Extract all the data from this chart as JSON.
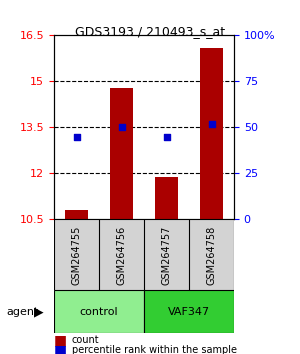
{
  "title": "GDS3193 / 210493_s_at",
  "samples": [
    "GSM264755",
    "GSM264756",
    "GSM264757",
    "GSM264758"
  ],
  "groups": [
    "control",
    "control",
    "VAF347",
    "VAF347"
  ],
  "group_colors": [
    "#90EE90",
    "#90EE90",
    "#32CD32",
    "#32CD32"
  ],
  "bar_values": [
    10.8,
    14.8,
    11.9,
    16.1
  ],
  "dot_values": [
    13.4,
    13.5,
    13.4,
    13.55
  ],
  "dot_percentiles": [
    45,
    50,
    45,
    52
  ],
  "bar_color": "#AA0000",
  "dot_color": "#0000CC",
  "bar_bottom": 10.5,
  "ylim_left": [
    10.5,
    16.5
  ],
  "ylim_right": [
    0,
    100
  ],
  "yticks_left": [
    10.5,
    12,
    13.5,
    15,
    16.5
  ],
  "ytick_labels_left": [
    "10.5",
    "12",
    "13.5",
    "15",
    "16.5"
  ],
  "yticks_right": [
    0,
    25,
    50,
    75,
    100
  ],
  "ytick_labels_right": [
    "0",
    "25",
    "50",
    "75",
    "100%"
  ],
  "hlines": [
    12,
    13.5,
    15
  ],
  "legend_count_label": "count",
  "legend_pct_label": "percentile rank within the sample",
  "agent_label": "agent",
  "group_label_control": "control",
  "group_label_vaf": "VAF347",
  "bar_width": 0.5
}
